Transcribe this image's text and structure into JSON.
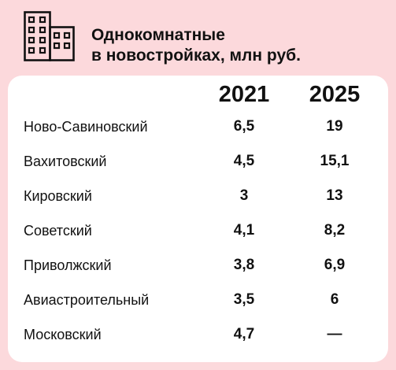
{
  "header": {
    "icon": "building-icon",
    "title_line1": "Однокомнатные",
    "title_line2": "в новостройках, млн руб."
  },
  "table": {
    "columns": [
      "2021",
      "2025"
    ],
    "rows": [
      {
        "district": "Ново-Савиновский",
        "v2021": "6,5",
        "v2025": "19"
      },
      {
        "district": "Вахитовский",
        "v2021": "4,5",
        "v2025": "15,1"
      },
      {
        "district": "Кировский",
        "v2021": "3",
        "v2025": "13"
      },
      {
        "district": "Советский",
        "v2021": "4,1",
        "v2025": "8,2"
      },
      {
        "district": "Приволжский",
        "v2021": "3,8",
        "v2025": "6,9"
      },
      {
        "district": "Авиастроительный",
        "v2021": "3,5",
        "v2025": "6"
      },
      {
        "district": "Московский",
        "v2021": "4,7",
        "v2025": "—"
      }
    ]
  },
  "colors": {
    "background": "#fcd9dc",
    "card": "#ffffff",
    "text": "#111111"
  }
}
